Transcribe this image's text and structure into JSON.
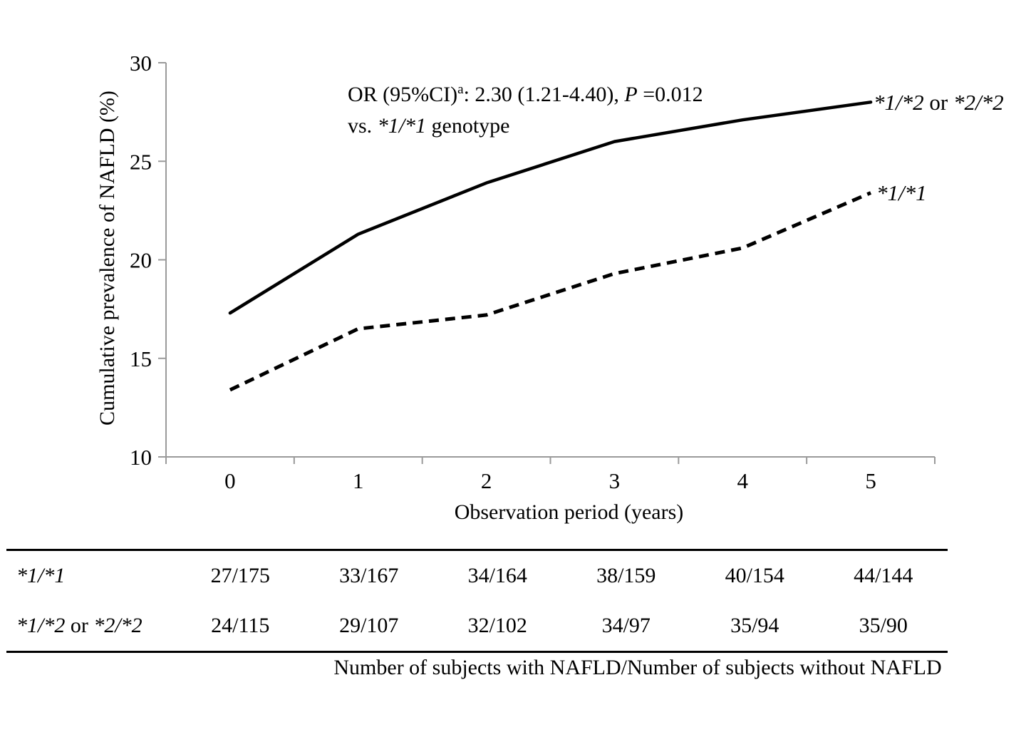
{
  "chart_data": {
    "type": "line",
    "title": "",
    "xlabel": "Observation period (years)",
    "ylabel": "Cumulative prevalence of NAFLD (%)",
    "categories": [
      "0",
      "1",
      "2",
      "3",
      "4",
      "5"
    ],
    "ylim": [
      10,
      30
    ],
    "y_ticks": [
      30,
      25,
      20,
      15,
      10
    ],
    "grid": "off",
    "legend_position": "right-of-line-ends",
    "series": [
      {
        "name": "*1/*2 or *2/*2",
        "line_style": "solid",
        "color": "#000000",
        "values": [
          17.3,
          21.3,
          23.9,
          26.0,
          27.1,
          28.0
        ]
      },
      {
        "name": "*1/*1",
        "line_style": "dashed",
        "color": "#000000",
        "values": [
          13.4,
          16.5,
          17.2,
          19.3,
          20.6,
          23.4
        ]
      }
    ],
    "annotation_full": "OR (95%CI)a: 2.30 (1.21-4.40), P =0.012 vs. *1/*1 genotype"
  },
  "annotation": {
    "or_text": "OR (95%CI)",
    "sup": "a",
    "mid": ": 2.30 (1.21-4.40), ",
    "p_italic": "P",
    "p_value": " =0.012",
    "line2_pre": "vs. ",
    "line2_genotype": "*1/*1",
    "line2_post": " genotype"
  },
  "series_labels": {
    "solid_a": "*1/*2",
    "solid_or": " or ",
    "solid_b": "*2/*2",
    "dashed": "*1/*1"
  },
  "axis": {
    "y_title": "Cumulative prevalence of NAFLD (%)",
    "x_title": "Observation period (years)"
  },
  "table": {
    "row1": {
      "label": "*1/*1",
      "values": [
        "27/175",
        "33/167",
        "34/164",
        "38/159",
        "40/154",
        "44/144"
      ]
    },
    "row2": {
      "label_a": "*1/*2",
      "label_or": " or ",
      "label_b": "*2/*2",
      "values": [
        "24/115",
        "29/107",
        "32/102",
        "34/97",
        "35/94",
        "35/90"
      ]
    },
    "footnote": "Number of subjects with NAFLD/Number of subjects without NAFLD"
  },
  "colors": {
    "text": "#000000",
    "axis_line": "#9a9a9a",
    "data_line": "#000000",
    "background": "#ffffff"
  }
}
